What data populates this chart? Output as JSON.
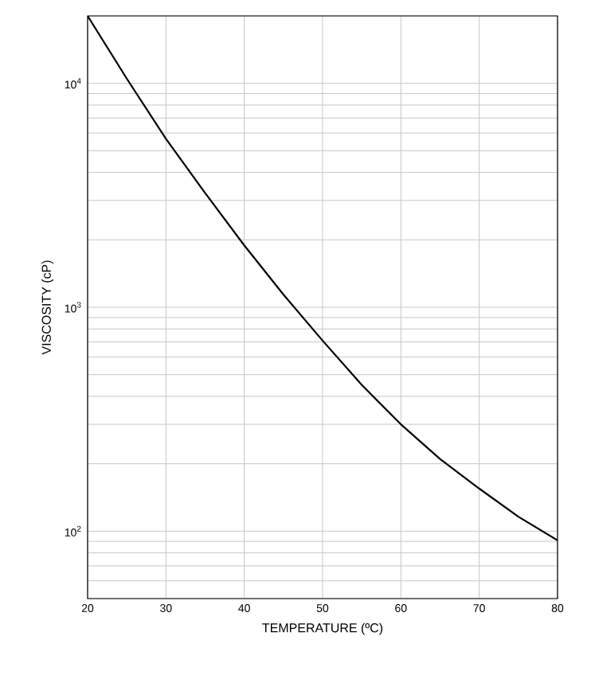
{
  "chart_data": {
    "type": "line",
    "xlabel": "TEMPERATURE (ºC)",
    "ylabel": "VISCOSITY (cP)",
    "x": [
      20,
      25,
      30,
      35,
      40,
      45,
      50,
      55,
      60,
      65,
      70,
      75,
      80
    ],
    "series": [
      {
        "color": "#000000",
        "values": [
          20000,
          10500,
          5650,
          3240,
          1890,
          1140,
          710,
          450,
          300,
          210,
          155,
          116,
          91
        ]
      }
    ],
    "xlim": [
      20,
      80
    ],
    "xticks": [
      20,
      30,
      40,
      50,
      60,
      70,
      80
    ],
    "ylim": [
      50,
      20000
    ],
    "yticks": [
      {
        "value": 100,
        "label": "10$^{2}$"
      },
      {
        "value": 1000,
        "label": "10$^{3}$"
      },
      {
        "value": 10000,
        "label": "10$^{4}$"
      }
    ],
    "log": "y",
    "grid": true,
    "marker": "none",
    "line_style": "solid"
  }
}
